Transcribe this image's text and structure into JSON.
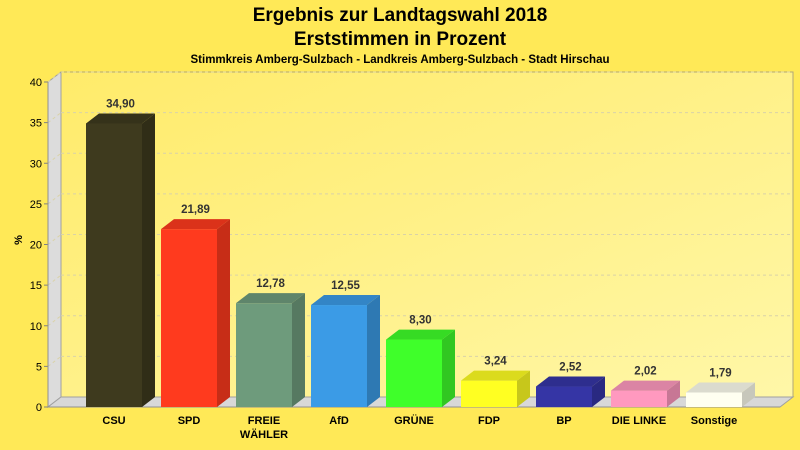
{
  "chart_data": {
    "type": "bar",
    "title": "Ergebnis zur Landtagswahl 2018",
    "subtitle_1": "Erststimmen in Prozent",
    "subtitle_2": "Stimmkreis Amberg-Sulzbach - Landkreis Amberg-Sulzbach - Stadt Hirschau",
    "xlabel": "",
    "ylabel": "%",
    "ylim": [
      0,
      40
    ],
    "yticks": [
      0,
      5,
      10,
      15,
      20,
      25,
      30,
      35,
      40
    ],
    "grid": true,
    "categories": [
      "CSU",
      "SPD",
      "FREIE WÄHLER",
      "AfD",
      "GRÜNE",
      "FDP",
      "BP",
      "DIE LINKE",
      "Sonstige"
    ],
    "category_lines": [
      [
        "CSU"
      ],
      [
        "SPD"
      ],
      [
        "FREIE",
        "WÄHLER"
      ],
      [
        "AfD"
      ],
      [
        "GRÜNE"
      ],
      [
        "FDP"
      ],
      [
        "BP"
      ],
      [
        "DIE LINKE"
      ],
      [
        "Sonstige"
      ]
    ],
    "values": [
      34.9,
      21.89,
      12.78,
      12.55,
      8.3,
      3.24,
      2.52,
      2.02,
      1.79
    ],
    "value_labels": [
      "34,90",
      "21,89",
      "12,78",
      "12,55",
      "8,30",
      "3,24",
      "2,52",
      "2,02",
      "1,79"
    ],
    "colors": [
      "#3E3A1E",
      "#FF3A1E",
      "#6E9B7C",
      "#3B9BE6",
      "#3FFF2A",
      "#FFFF22",
      "#3535A5",
      "#FF99BF",
      "#FFFFF0"
    ]
  }
}
